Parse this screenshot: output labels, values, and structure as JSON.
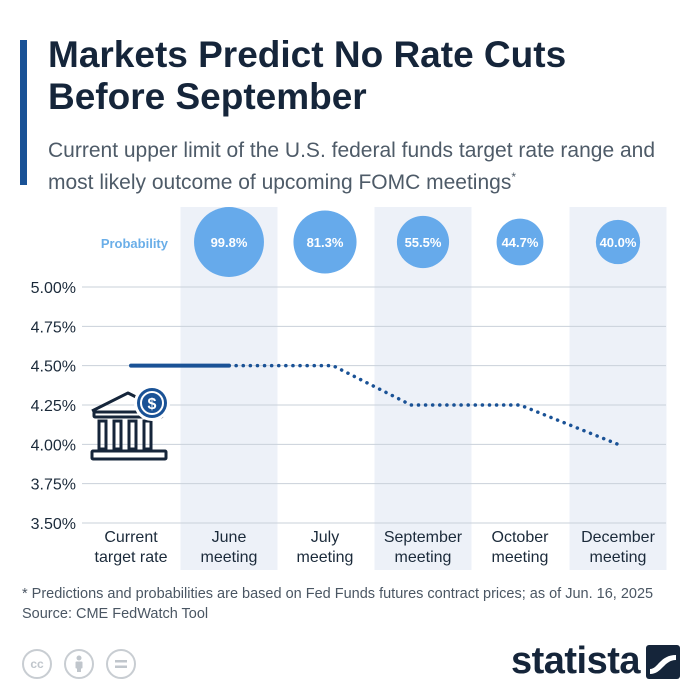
{
  "title": "Markets Predict No Rate Cuts Before September",
  "subtitle": "Current upper limit of the U.S. federal funds target rate range and most likely outcome of upcoming FOMC meetings",
  "subtitle_marker": "*",
  "footnote": "* Predictions and probabilities are based on Fed Funds futures contract prices; as of Jun. 16, 2025",
  "source": "Source: CME FedWatch Tool",
  "brand": "statista",
  "license_icons": [
    "cc-icon",
    "attribution-icon",
    "no-derivatives-icon"
  ],
  "colors": {
    "accent": "#1a5296",
    "line": "#1a5296",
    "bubble": "#66aaeb",
    "band": "#edf1f8",
    "probability_label": "#6aaee8"
  },
  "chart_data": {
    "type": "line",
    "categories": [
      "Current target rate",
      "June meeting",
      "July meeting",
      "September meeting",
      "October meeting",
      "December meeting"
    ],
    "category_lines": [
      [
        "Current",
        "target rate"
      ],
      [
        "June",
        "meeting"
      ],
      [
        "July",
        "meeting"
      ],
      [
        "September",
        "meeting"
      ],
      [
        "October",
        "meeting"
      ],
      [
        "December",
        "meeting"
      ]
    ],
    "values": [
      4.5,
      4.5,
      4.5,
      4.25,
      4.25,
      4.0
    ],
    "probability_label": "Probability",
    "probabilities": [
      null,
      99.8,
      81.3,
      55.5,
      44.7,
      40.0
    ],
    "probability_labels": [
      "",
      "99.8%",
      "81.3%",
      "55.5%",
      "44.7%",
      "40.0%"
    ],
    "ylim": [
      3.5,
      5.0
    ],
    "yticks": [
      5.0,
      4.75,
      4.5,
      4.25,
      4.0,
      3.75,
      3.5
    ],
    "ytick_labels": [
      "5.00%",
      "4.75%",
      "4.50%",
      "4.25%",
      "4.00%",
      "3.75%",
      "3.50%"
    ],
    "solid_segment": [
      "Current target rate",
      "June meeting"
    ],
    "dotted_segment": [
      "June meeting",
      "December meeting"
    ],
    "grid": true
  }
}
